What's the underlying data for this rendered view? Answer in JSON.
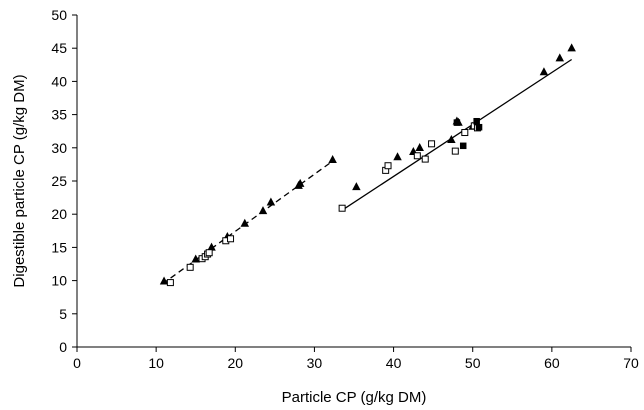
{
  "chart_data": {
    "type": "scatter",
    "title": "",
    "xlabel": "Particle CP (g/kg DM)",
    "ylabel": "Digestible particle CP (g/kg DM)",
    "xlim": [
      0,
      70
    ],
    "ylim": [
      0,
      50
    ],
    "xticks": [
      "0",
      "10",
      "20",
      "30",
      "40",
      "50",
      "60",
      "70"
    ],
    "yticks": [
      "0",
      "5",
      "10",
      "15",
      "20",
      "25",
      "30",
      "35",
      "40",
      "45",
      "50"
    ],
    "grid": false,
    "legend": "none",
    "series": [
      {
        "marker": "filled-triangle",
        "color": "#000000",
        "points": [
          [
            11.0,
            9.9
          ],
          [
            15.0,
            13.2
          ],
          [
            17.0,
            15.0
          ],
          [
            19.0,
            16.6
          ],
          [
            21.2,
            18.6
          ],
          [
            23.5,
            20.5
          ],
          [
            24.5,
            21.8
          ],
          [
            28.0,
            24.3
          ],
          [
            28.2,
            24.6
          ],
          [
            32.3,
            28.2
          ],
          [
            35.3,
            24.1
          ],
          [
            40.5,
            28.6
          ],
          [
            42.5,
            29.4
          ],
          [
            43.3,
            30.0
          ],
          [
            47.3,
            31.2
          ],
          [
            48.0,
            34.0
          ],
          [
            48.2,
            33.8
          ],
          [
            50.0,
            33.2
          ],
          [
            59.0,
            41.4
          ],
          [
            61.0,
            43.5
          ],
          [
            62.5,
            45.0
          ]
        ]
      },
      {
        "marker": "open-square",
        "color": "#000000",
        "points": [
          [
            11.8,
            9.7
          ],
          [
            14.3,
            12.0
          ],
          [
            15.8,
            13.3
          ],
          [
            16.2,
            13.6
          ],
          [
            16.5,
            14.0
          ],
          [
            16.7,
            14.2
          ],
          [
            18.8,
            16.0
          ],
          [
            19.4,
            16.3
          ],
          [
            33.5,
            20.9
          ],
          [
            39.0,
            26.6
          ],
          [
            39.3,
            27.3
          ],
          [
            43.0,
            28.8
          ],
          [
            44.0,
            28.3
          ],
          [
            44.8,
            30.6
          ],
          [
            47.8,
            29.5
          ],
          [
            49.0,
            32.3
          ],
          [
            50.2,
            33.3
          ],
          [
            50.6,
            33.0
          ]
        ]
      },
      {
        "marker": "filled-square",
        "color": "#000000",
        "points": [
          [
            48.0,
            33.8
          ],
          [
            48.8,
            30.3
          ],
          [
            50.5,
            34.0
          ],
          [
            50.8,
            33.1
          ]
        ]
      }
    ],
    "fit_lines": [
      {
        "style": "dashed",
        "x": [
          10.8,
          32.3
        ],
        "y": [
          9.5,
          28.0
        ]
      },
      {
        "style": "solid",
        "x": [
          33.5,
          62.5
        ],
        "y": [
          20.6,
          43.3
        ]
      }
    ]
  }
}
